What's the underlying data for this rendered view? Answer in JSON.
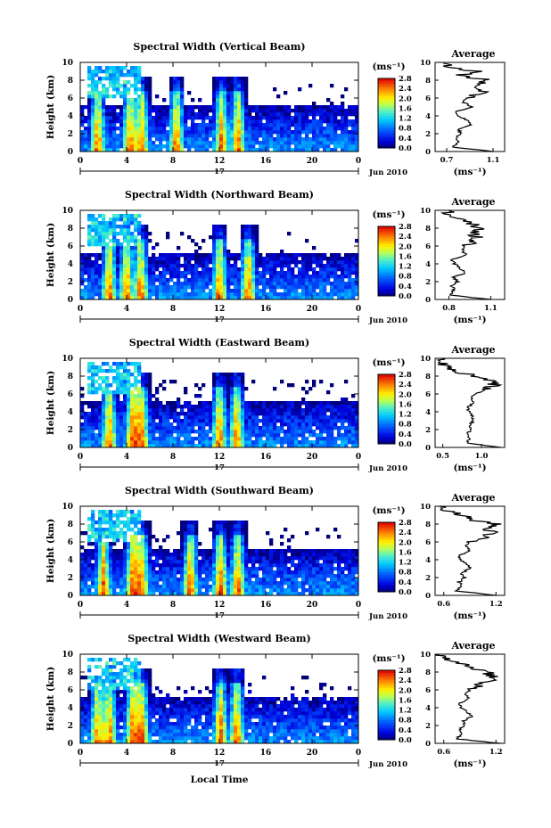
{
  "figure": {
    "xlabel": "Local Time",
    "date_label": "Jun 2010",
    "day_label": "17",
    "ylabel": "Height (km)",
    "colorbar_unit": "(ms⁻¹)",
    "avg_title": "Average",
    "avg_xlabel": "(ms⁻¹)"
  },
  "chart_data": [
    {
      "type": "heatmap",
      "title": "Spectral Width (Vertical Beam)",
      "x_ticks": [
        "0",
        "4",
        "8",
        "12",
        "16",
        "20",
        "0"
      ],
      "y_ticks": [
        "0",
        "2",
        "4",
        "6",
        "8",
        "10"
      ],
      "colorbar_ticks": [
        "0.0",
        "0.4",
        "0.8",
        "1.2",
        "1.6",
        "2.0",
        "2.4",
        "2.8"
      ],
      "xlim": [
        0,
        24
      ],
      "ylim": [
        0,
        10
      ],
      "zlim": [
        0,
        2.8
      ],
      "convection_times_h": [
        1.5,
        4.3,
        5.3,
        8.3,
        12.2,
        13.6
      ],
      "average_profile": {
        "x_ticks": [
          "0.7",
          "1.1"
        ],
        "xlim": [
          0.6,
          1.2
        ],
        "height_km": [
          0,
          0.5,
          1,
          1.5,
          2,
          2.5,
          3,
          3.5,
          4,
          4.5,
          5,
          5.5,
          6,
          6.5,
          7,
          7.5,
          8,
          8.5,
          9,
          9.5,
          10
        ],
        "width": [
          1.1,
          0.75,
          0.8,
          0.78,
          0.82,
          0.8,
          0.9,
          0.88,
          0.8,
          0.78,
          0.92,
          0.85,
          0.86,
          0.98,
          1.02,
          0.95,
          1.08,
          0.8,
          0.95,
          0.7,
          0.68
        ]
      }
    },
    {
      "type": "heatmap",
      "title": "Spectral Width (Northward Beam)",
      "x_ticks": [
        "0",
        "4",
        "8",
        "12",
        "16",
        "20",
        "0"
      ],
      "y_ticks": [
        "0",
        "2",
        "4",
        "6",
        "8",
        "10"
      ],
      "colorbar_ticks": [
        "0.0",
        "0.4",
        "0.8",
        "1.2",
        "1.6",
        "2.0",
        "2.4",
        "2.8"
      ],
      "xlim": [
        0,
        24
      ],
      "ylim": [
        0,
        10
      ],
      "zlim": [
        0,
        2.8
      ],
      "convection_times_h": [
        2.5,
        4.0,
        5.2,
        12.0,
        14.5
      ],
      "average_profile": {
        "x_ticks": [
          "0.8",
          "1.1"
        ],
        "xlim": [
          0.7,
          1.2
        ],
        "height_km": [
          0,
          0.5,
          1,
          1.5,
          2,
          2.5,
          3,
          3.5,
          4,
          4.5,
          5,
          5.5,
          6,
          6.5,
          7,
          7.5,
          8,
          8.5,
          9,
          9.5,
          10
        ],
        "width": [
          1.1,
          0.8,
          0.84,
          0.82,
          0.86,
          0.83,
          0.92,
          0.88,
          0.84,
          0.82,
          0.92,
          0.9,
          0.9,
          0.98,
          1.0,
          0.97,
          1.02,
          0.96,
          0.88,
          0.78,
          0.8
        ]
      }
    },
    {
      "type": "heatmap",
      "title": "Spectral Width (Eastward Beam)",
      "x_ticks": [
        "0",
        "4",
        "8",
        "12",
        "16",
        "20",
        "0"
      ],
      "y_ticks": [
        "0",
        "2",
        "4",
        "6",
        "8",
        "10"
      ],
      "colorbar_ticks": [
        "0.0",
        "0.4",
        "0.8",
        "1.2",
        "1.6",
        "2.0",
        "2.4",
        "2.8"
      ],
      "xlim": [
        0,
        24
      ],
      "ylim": [
        0,
        10
      ],
      "zlim": [
        0,
        2.8
      ],
      "convection_times_h": [
        2.5,
        4.5,
        5.3,
        12.0,
        13.5
      ],
      "average_profile": {
        "x_ticks": [
          "0.5",
          "1.0"
        ],
        "xlim": [
          0.4,
          1.3
        ],
        "height_km": [
          0,
          0.5,
          1,
          1.5,
          2,
          2.5,
          3,
          3.5,
          4,
          4.5,
          5,
          5.5,
          6,
          6.5,
          7,
          7.5,
          8,
          8.5,
          9,
          9.5,
          10
        ],
        "width": [
          1.25,
          0.8,
          0.85,
          0.82,
          0.86,
          0.84,
          0.9,
          0.88,
          0.84,
          0.82,
          0.9,
          0.88,
          0.9,
          1.0,
          1.18,
          1.1,
          0.9,
          0.7,
          0.55,
          0.5,
          0.48
        ]
      }
    },
    {
      "type": "heatmap",
      "title": "Spectral Width (Southward Beam)",
      "x_ticks": [
        "0",
        "4",
        "8",
        "12",
        "16",
        "20",
        "0"
      ],
      "y_ticks": [
        "0",
        "2",
        "4",
        "6",
        "8",
        "10"
      ],
      "colorbar_ticks": [
        "0.0",
        "0.4",
        "0.8",
        "1.2",
        "1.6",
        "2.0",
        "2.4",
        "2.8"
      ],
      "xlim": [
        0,
        24
      ],
      "ylim": [
        0,
        10
      ],
      "zlim": [
        0,
        2.8
      ],
      "convection_times_h": [
        2.0,
        4.5,
        5.3,
        9.5,
        12.1,
        13.6
      ],
      "average_profile": {
        "x_ticks": [
          "0.6",
          "1.2"
        ],
        "xlim": [
          0.5,
          1.3
        ],
        "height_km": [
          0,
          0.5,
          1,
          1.5,
          2,
          2.5,
          3,
          3.5,
          4,
          4.5,
          5,
          5.5,
          6,
          6.5,
          7,
          7.5,
          8,
          8.5,
          9,
          9.5,
          10
        ],
        "width": [
          1.2,
          0.75,
          0.8,
          0.78,
          0.84,
          0.8,
          0.9,
          0.86,
          0.8,
          0.78,
          0.9,
          0.86,
          0.88,
          1.05,
          1.15,
          1.1,
          1.2,
          0.9,
          0.8,
          0.6,
          0.55
        ]
      }
    },
    {
      "type": "heatmap",
      "title": "Spectral Width (Westward Beam)",
      "x_ticks": [
        "0",
        "4",
        "8",
        "12",
        "16",
        "20",
        "0"
      ],
      "y_ticks": [
        "0",
        "2",
        "4",
        "6",
        "8",
        "10"
      ],
      "colorbar_ticks": [
        "0.0",
        "0.4",
        "0.8",
        "1.2",
        "1.6",
        "2.0",
        "2.4",
        "2.8"
      ],
      "xlim": [
        0,
        24
      ],
      "ylim": [
        0,
        10
      ],
      "zlim": [
        0,
        2.8
      ],
      "convection_times_h": [
        1.5,
        2.5,
        4.5,
        5.3,
        12.1,
        13.5
      ],
      "average_profile": {
        "x_ticks": [
          "0.6",
          "1.2"
        ],
        "xlim": [
          0.5,
          1.3
        ],
        "height_km": [
          0,
          0.5,
          1,
          1.5,
          2,
          2.5,
          3,
          3.5,
          4,
          4.5,
          5,
          5.5,
          6,
          6.5,
          7,
          7.5,
          8,
          8.5,
          9,
          9.5,
          10
        ],
        "width": [
          1.25,
          0.75,
          0.8,
          0.78,
          0.84,
          0.82,
          0.92,
          0.88,
          0.8,
          0.78,
          0.88,
          0.86,
          0.9,
          1.0,
          1.12,
          1.15,
          1.1,
          0.92,
          0.8,
          0.62,
          0.55
        ]
      }
    }
  ]
}
